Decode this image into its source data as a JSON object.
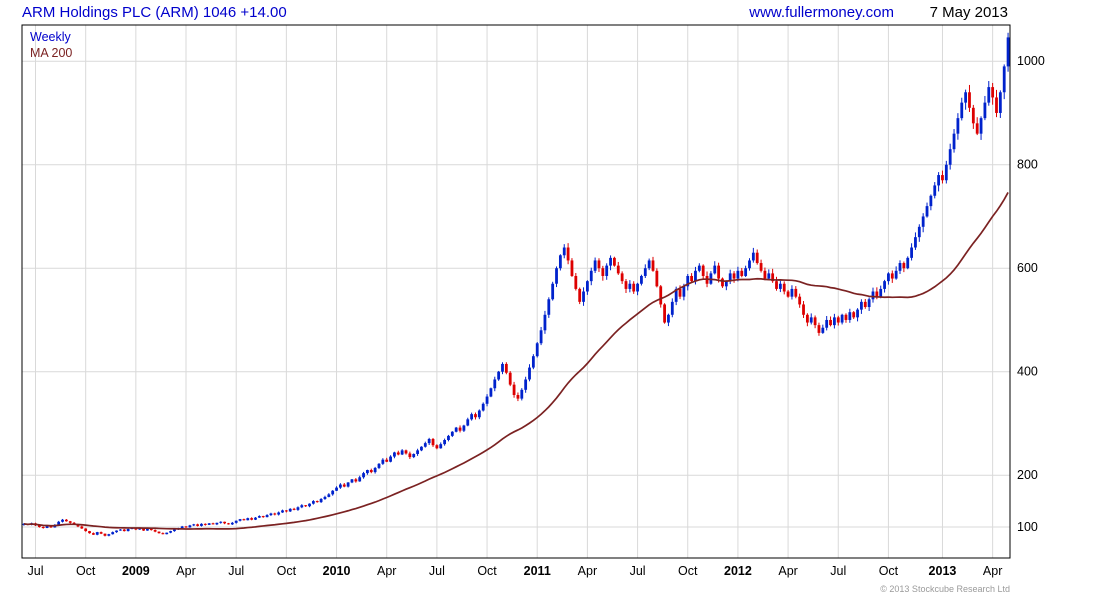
{
  "header": {
    "title": "ARM Holdings PLC (ARM) 1046 +14.00",
    "website": "www.fullermoney.com",
    "date": "7 May 2013"
  },
  "footer": {
    "copyright": "© 2013 Stockcube Research Ltd"
  },
  "chart_data": {
    "type": "candlestick",
    "title": "ARM Holdings PLC (ARM)",
    "interval": "weekly",
    "last_price": 1046,
    "change": "+14.00",
    "legend": [
      {
        "label": "Weekly",
        "color": "#0000cc"
      },
      {
        "label": "MA 200",
        "color": "#7b2222"
      }
    ],
    "ma": {
      "label": "MA 200",
      "period_weeks": 40,
      "color": "#7b2222"
    },
    "colors": {
      "up": "#0022cc",
      "down": "#dd0000",
      "grid": "#d9d9d9",
      "border": "#000000"
    },
    "y_axis": {
      "side": "right",
      "min": 40,
      "max": 1070,
      "ticks": [
        100,
        200,
        400,
        600,
        800,
        1000
      ]
    },
    "x_ticks": [
      {
        "label": "Jul",
        "week": 3
      },
      {
        "label": "Oct",
        "week": 16
      },
      {
        "label": "2009",
        "week": 29,
        "year": true
      },
      {
        "label": "Apr",
        "week": 42
      },
      {
        "label": "Jul",
        "week": 55
      },
      {
        "label": "Oct",
        "week": 68
      },
      {
        "label": "2010",
        "week": 81,
        "year": true
      },
      {
        "label": "Apr",
        "week": 94
      },
      {
        "label": "Jul",
        "week": 107
      },
      {
        "label": "Oct",
        "week": 120
      },
      {
        "label": "2011",
        "week": 133,
        "year": true
      },
      {
        "label": "Apr",
        "week": 146
      },
      {
        "label": "Jul",
        "week": 159
      },
      {
        "label": "Oct",
        "week": 172
      },
      {
        "label": "2012",
        "week": 185,
        "year": true
      },
      {
        "label": "Apr",
        "week": 198
      },
      {
        "label": "Jul",
        "week": 211
      },
      {
        "label": "Oct",
        "week": 224
      },
      {
        "label": "2013",
        "week": 238,
        "year": true
      },
      {
        "label": "Apr",
        "week": 251
      }
    ],
    "weekly_closes": [
      106,
      104,
      107,
      103,
      100,
      98,
      102,
      99,
      104,
      110,
      114,
      111,
      108,
      105,
      101,
      97,
      92,
      88,
      85,
      90,
      87,
      83,
      86,
      90,
      93,
      95,
      92,
      96,
      98,
      95,
      97,
      93,
      96,
      94,
      91,
      88,
      86,
      89,
      92,
      95,
      98,
      101,
      99,
      103,
      105,
      102,
      106,
      104,
      107,
      105,
      108,
      110,
      107,
      105,
      108,
      112,
      115,
      113,
      117,
      114,
      118,
      121,
      119,
      123,
      126,
      124,
      128,
      132,
      130,
      135,
      133,
      138,
      142,
      140,
      145,
      150,
      148,
      154,
      158,
      163,
      170,
      176,
      182,
      178,
      186,
      192,
      188,
      196,
      204,
      210,
      206,
      214,
      222,
      230,
      226,
      236,
      244,
      240,
      248,
      242,
      235,
      241,
      248,
      255,
      262,
      270,
      258,
      252,
      260,
      268,
      276,
      284,
      292,
      286,
      296,
      308,
      318,
      312,
      325,
      338,
      352,
      368,
      385,
      400,
      415,
      398,
      375,
      355,
      348,
      365,
      385,
      408,
      430,
      455,
      480,
      510,
      540,
      570,
      600,
      625,
      640,
      615,
      585,
      560,
      535,
      555,
      575,
      595,
      615,
      600,
      585,
      605,
      620,
      605,
      590,
      575,
      560,
      570,
      555,
      570,
      585,
      600,
      615,
      595,
      565,
      530,
      495,
      510,
      535,
      560,
      545,
      565,
      585,
      575,
      595,
      605,
      585,
      570,
      590,
      605,
      580,
      565,
      575,
      590,
      580,
      595,
      585,
      600,
      615,
      630,
      610,
      595,
      580,
      590,
      575,
      560,
      570,
      555,
      545,
      560,
      545,
      530,
      510,
      495,
      505,
      490,
      475,
      485,
      500,
      490,
      505,
      495,
      510,
      500,
      515,
      505,
      520,
      535,
      525,
      540,
      555,
      545,
      560,
      575,
      590,
      580,
      595,
      610,
      600,
      620,
      640,
      660,
      680,
      700,
      720,
      740,
      760,
      780,
      770,
      800,
      830,
      860,
      890,
      920,
      940,
      910,
      880,
      860,
      890,
      920,
      950,
      930,
      900,
      940,
      990,
      1046
    ]
  }
}
